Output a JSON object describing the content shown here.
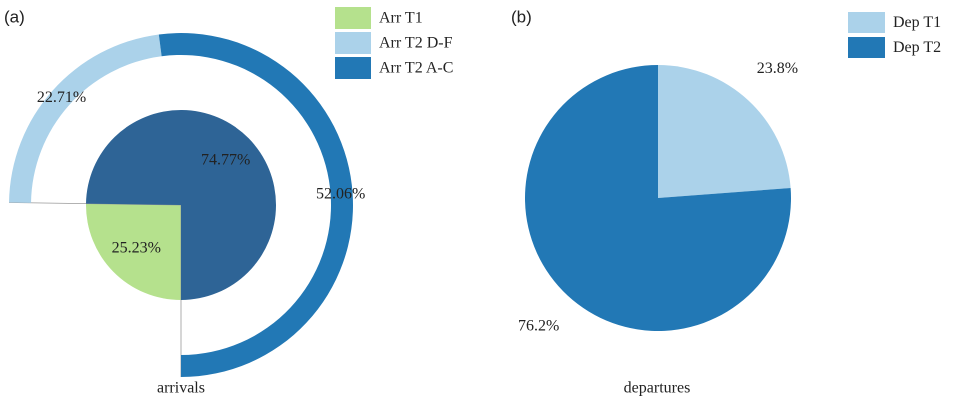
{
  "chart_data": [
    {
      "type": "nested-pie",
      "panel_label": "(a)",
      "xlabel": "arrivals",
      "inner": {
        "values": [
          25.23,
          74.77
        ],
        "value_labels": [
          "25.23%",
          "74.77%"
        ],
        "colors": [
          "#b5e18d",
          "#2e6496"
        ]
      },
      "outer": {
        "values": [
          22.71,
          52.06
        ],
        "value_labels": [
          "22.71%",
          "52.06%"
        ],
        "colors": [
          "#abd2ea",
          "#2278b5"
        ]
      },
      "legend": [
        {
          "label": "Arr T1",
          "color": "#b5e18d"
        },
        {
          "label": "Arr T2 D-F",
          "color": "#abd2ea"
        },
        {
          "label": "Arr T2 A-C",
          "color": "#2278b5"
        }
      ]
    },
    {
      "type": "pie",
      "panel_label": "(b)",
      "xlabel": "departures",
      "categories": [
        "Dep T1",
        "Dep T2"
      ],
      "values": [
        23.8,
        76.2
      ],
      "value_labels": [
        "23.8%",
        "76.2%"
      ],
      "colors": [
        "#abd2ea",
        "#2278b5"
      ]
    }
  ]
}
